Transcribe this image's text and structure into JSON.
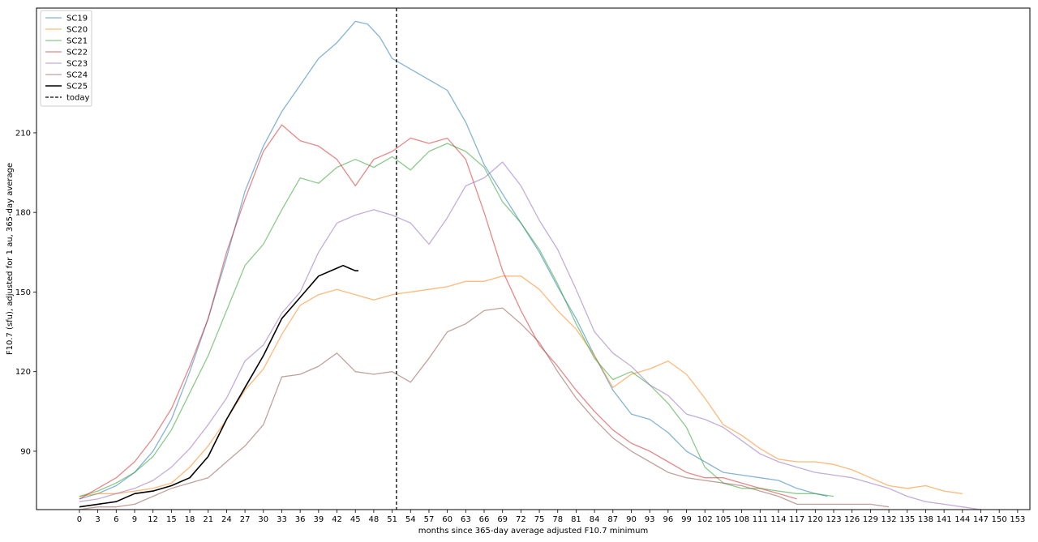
{
  "chart_data": {
    "type": "line",
    "xlabel": "months since 365-day average adjusted F10.7 minimum",
    "ylabel": "F10.7 (sfu), adjusted for 1 au, 365-day average",
    "xlim": [
      -7,
      155
    ],
    "ylim": [
      68,
      257
    ],
    "x_ticks": [
      0,
      3,
      6,
      9,
      12,
      15,
      18,
      21,
      24,
      27,
      30,
      33,
      36,
      39,
      42,
      45,
      48,
      51,
      54,
      57,
      60,
      63,
      66,
      69,
      72,
      75,
      78,
      81,
      84,
      87,
      90,
      93,
      96,
      99,
      102,
      105,
      108,
      111,
      114,
      117,
      120,
      123,
      126,
      129,
      132,
      135,
      138,
      141,
      144,
      147,
      150,
      153
    ],
    "y_ticks": [
      90,
      120,
      150,
      180,
      210
    ],
    "legend_position": "upper-left",
    "today_x": 51.7,
    "series": [
      {
        "name": "SC19",
        "color": "#1f77b4",
        "alpha": 0.55,
        "x": [
          0,
          3,
          6,
          9,
          12,
          15,
          18,
          21,
          24,
          27,
          30,
          33,
          36,
          39,
          42,
          45,
          47,
          49,
          51,
          54,
          57,
          60,
          63,
          66,
          69,
          72,
          75,
          78,
          81,
          84,
          87,
          90,
          93,
          96,
          99,
          102,
          105,
          108,
          111,
          114,
          117,
          120,
          122
        ],
        "y": [
          72,
          74,
          77,
          82,
          90,
          102,
          120,
          140,
          163,
          188,
          205,
          218,
          228,
          238,
          244,
          252,
          251,
          246,
          238,
          234,
          230,
          226,
          214,
          198,
          187,
          176,
          165,
          152,
          140,
          126,
          113,
          104,
          102,
          97,
          90,
          86,
          82,
          81,
          80,
          79,
          76,
          74,
          73
        ]
      },
      {
        "name": "SC20",
        "color": "#ff7f0e",
        "alpha": 0.55,
        "x": [
          0,
          3,
          6,
          9,
          12,
          15,
          18,
          21,
          24,
          27,
          30,
          33,
          36,
          39,
          42,
          45,
          48,
          51,
          54,
          57,
          60,
          63,
          66,
          69,
          72,
          75,
          78,
          81,
          84,
          87,
          90,
          93,
          96,
          99,
          102,
          105,
          108,
          111,
          114,
          117,
          120,
          123,
          126,
          129,
          132,
          135,
          138,
          141,
          144
        ],
        "y": [
          73,
          74,
          74,
          75,
          76,
          78,
          84,
          92,
          102,
          113,
          121,
          134,
          145,
          149,
          151,
          149,
          147,
          149,
          150,
          151,
          152,
          154,
          154,
          156,
          156,
          151,
          143,
          136,
          126,
          114,
          119,
          121,
          124,
          119,
          110,
          100,
          96,
          91,
          87,
          86,
          86,
          85,
          83,
          80,
          77,
          76,
          77,
          75,
          74
        ]
      },
      {
        "name": "SC21",
        "color": "#2ca02c",
        "alpha": 0.55,
        "x": [
          0,
          3,
          6,
          9,
          12,
          15,
          18,
          21,
          24,
          27,
          30,
          33,
          36,
          39,
          42,
          45,
          48,
          51,
          54,
          57,
          60,
          63,
          66,
          69,
          72,
          75,
          78,
          81,
          84,
          87,
          90,
          93,
          96,
          99,
          102,
          105,
          108,
          111,
          114,
          117,
          120,
          123
        ],
        "y": [
          73,
          75,
          78,
          82,
          88,
          98,
          112,
          126,
          143,
          160,
          168,
          181,
          193,
          191,
          197,
          200,
          197,
          201,
          196,
          203,
          206,
          203,
          197,
          184,
          176,
          166,
          153,
          138,
          125,
          117,
          120,
          115,
          108,
          99,
          84,
          78,
          76,
          76,
          75,
          74,
          74,
          73
        ]
      },
      {
        "name": "SC22",
        "color": "#d62728",
        "alpha": 0.55,
        "x": [
          0,
          3,
          6,
          9,
          12,
          15,
          18,
          21,
          24,
          27,
          30,
          33,
          36,
          39,
          42,
          45,
          48,
          51,
          54,
          57,
          60,
          63,
          66,
          69,
          72,
          75,
          78,
          81,
          84,
          87,
          90,
          93,
          96,
          99,
          102,
          105,
          108,
          111,
          114,
          117
        ],
        "y": [
          72,
          76,
          80,
          86,
          95,
          106,
          122,
          140,
          165,
          185,
          203,
          213,
          207,
          205,
          200,
          190,
          200,
          203,
          208,
          206,
          208,
          200,
          180,
          158,
          143,
          130,
          122,
          113,
          105,
          98,
          93,
          90,
          86,
          82,
          80,
          80,
          78,
          76,
          74,
          72
        ]
      },
      {
        "name": "SC23",
        "color": "#9467bd",
        "alpha": 0.55,
        "x": [
          0,
          3,
          6,
          9,
          12,
          15,
          18,
          21,
          24,
          27,
          30,
          33,
          36,
          39,
          42,
          45,
          48,
          51,
          54,
          57,
          60,
          63,
          66,
          69,
          72,
          75,
          78,
          81,
          84,
          87,
          90,
          93,
          96,
          99,
          102,
          105,
          108,
          111,
          114,
          117,
          120,
          123,
          126,
          129,
          132,
          135,
          138,
          141,
          144,
          147
        ],
        "y": [
          71,
          72,
          74,
          76,
          79,
          84,
          91,
          100,
          110,
          124,
          130,
          142,
          150,
          165,
          176,
          179,
          181,
          179,
          176,
          168,
          178,
          190,
          193,
          199,
          190,
          177,
          166,
          151,
          135,
          127,
          122,
          115,
          111,
          104,
          102,
          99,
          94,
          89,
          86,
          84,
          82,
          81,
          80,
          78,
          76,
          73,
          71,
          70,
          69,
          68
        ]
      },
      {
        "name": "SC24",
        "color": "#8c564b",
        "alpha": 0.55,
        "x": [
          0,
          3,
          6,
          9,
          12,
          15,
          18,
          21,
          24,
          27,
          30,
          33,
          36,
          39,
          42,
          45,
          48,
          51,
          54,
          57,
          60,
          63,
          66,
          69,
          72,
          75,
          78,
          81,
          84,
          87,
          90,
          93,
          96,
          99,
          102,
          105,
          108,
          111,
          114,
          117,
          120,
          123,
          126,
          129,
          132
        ],
        "y": [
          68,
          69,
          69,
          70,
          73,
          76,
          78,
          80,
          86,
          92,
          100,
          118,
          119,
          122,
          127,
          120,
          119,
          120,
          116,
          125,
          135,
          138,
          143,
          144,
          138,
          131,
          120,
          110,
          102,
          95,
          90,
          86,
          82,
          80,
          79,
          78,
          77,
          75,
          73,
          70,
          70,
          70,
          70,
          70,
          69
        ]
      },
      {
        "name": "SC25",
        "color": "#000000",
        "alpha": 1.0,
        "x": [
          0,
          3,
          6,
          9,
          12,
          15,
          18,
          21,
          24,
          27,
          30,
          33,
          36,
          39,
          42,
          43,
          44,
          45,
          45.5
        ],
        "y": [
          69,
          70,
          71,
          74,
          75,
          77,
          80,
          88,
          102,
          114,
          126,
          140,
          148,
          156,
          159,
          160,
          159,
          158,
          158
        ]
      },
      {
        "name": "today",
        "color": "#000000",
        "style": "dashed"
      }
    ]
  }
}
